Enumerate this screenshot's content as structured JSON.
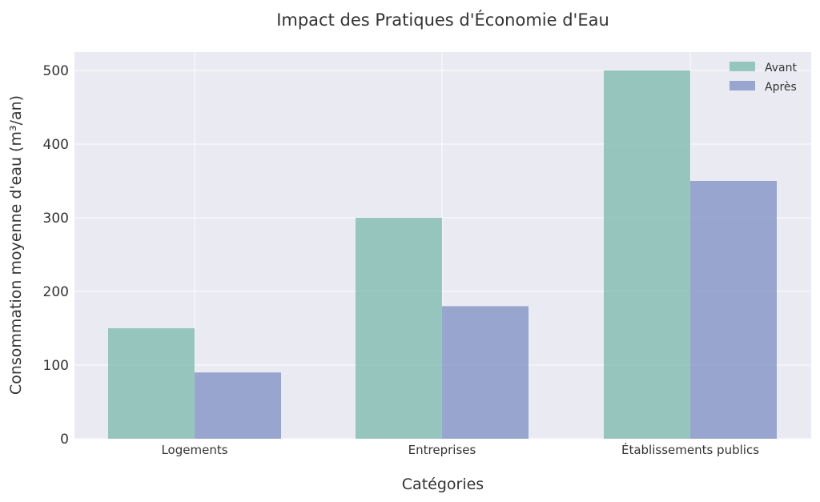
{
  "chart_data": {
    "type": "bar",
    "title": "Impact des Pratiques d'Économie d'Eau",
    "xlabel": "Catégories",
    "ylabel": "Consommation moyenne d'eau (m³/an)",
    "categories": [
      "Logements",
      "Entreprises",
      "Établissements publics"
    ],
    "series": [
      {
        "name": "Avant",
        "values": [
          150,
          300,
          500
        ],
        "color": "#7fbcaf"
      },
      {
        "name": "Après",
        "values": [
          90,
          180,
          350
        ],
        "color": "#8393c4"
      }
    ],
    "yticks": [
      "0",
      "100",
      "200",
      "300",
      "400",
      "500"
    ],
    "ylim": [
      0,
      525
    ],
    "grid": true,
    "legend_position": "top-right",
    "plot_background": "#eaeaf2"
  }
}
